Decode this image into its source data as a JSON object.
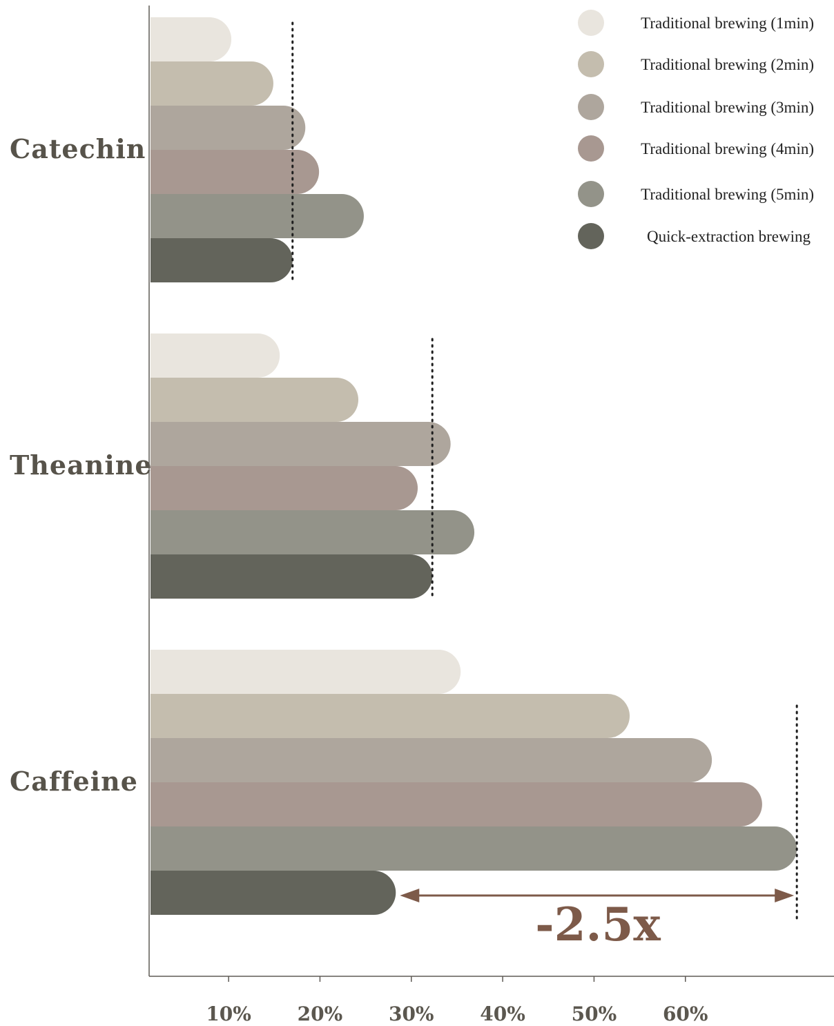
{
  "chart_data": {
    "type": "bar",
    "orientation": "horizontal",
    "categories": [
      "Catechin",
      "Theanine",
      "Caffeine"
    ],
    "series": [
      {
        "name": "Traditional brewing (1min)",
        "color": "#e9e5de",
        "values": [
          10.3,
          15.6,
          35.4
        ]
      },
      {
        "name": "Traditional brewing (2min)",
        "color": "#c4bdae",
        "values": [
          14.9,
          24.2,
          53.9
        ]
      },
      {
        "name": "Traditional brewing (3min)",
        "color": "#aea69d",
        "values": [
          18.4,
          34.3,
          62.9
        ]
      },
      {
        "name": "Traditional brewing (4min)",
        "color": "#a89891",
        "values": [
          19.9,
          30.7,
          68.4
        ]
      },
      {
        "name": "Traditional brewing (5min)",
        "color": "#939389",
        "values": [
          24.8,
          36.9,
          72.2
        ]
      },
      {
        "name": "Quick-extraction brewing",
        "color": "#63645b",
        "values": [
          17.0,
          32.3,
          28.3
        ]
      }
    ],
    "x_ticks": [
      "10%",
      "20%",
      "30%",
      "40%",
      "50%",
      "60%"
    ],
    "x_tick_values": [
      10,
      20,
      30,
      40,
      50,
      60
    ],
    "xlim": [
      1.3,
      74
    ],
    "reference_lines": [
      {
        "category": "Catechin",
        "value": 17.0
      },
      {
        "category": "Theanine",
        "value": 32.3
      },
      {
        "category": "Caffeine",
        "value": 72.2
      }
    ],
    "annotation": {
      "text": "-2.5x",
      "from_value": 28.3,
      "to_value": 72.2,
      "color": "#7d5a49"
    },
    "legend_position": "top-right",
    "grid": false,
    "title": "",
    "xlabel": "",
    "ylabel": ""
  }
}
